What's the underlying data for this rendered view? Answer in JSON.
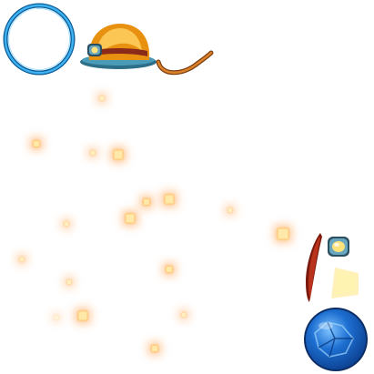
{
  "sheet": {
    "kind": "game sprite sheet (transparent background)",
    "background": "#ffffff"
  },
  "sprites": [
    {
      "id": "ring",
      "icon": "blue-ring-icon",
      "colors": [
        "#1f8fd6",
        "#0a5a99",
        "#ffffff"
      ]
    },
    {
      "id": "helmet",
      "icon": "miner-helmet-icon",
      "colors": [
        "#f2a31a",
        "#ffd060",
        "#2d6e88",
        "#8a2a1a"
      ]
    },
    {
      "id": "strap",
      "icon": "helmet-strap-icon",
      "colors": [
        "#c8741c",
        "#7a3a0e"
      ]
    },
    {
      "id": "lamp",
      "icon": "helmet-lamp-icon",
      "colors": [
        "#6aa7bf",
        "#ffe27a",
        "#2a4f60"
      ]
    },
    {
      "id": "cone",
      "icon": "red-light-cone-icon",
      "colors": [
        "#b8321c",
        "#7a1a0e"
      ]
    },
    {
      "id": "beam",
      "icon": "yellow-beam-icon",
      "colors": [
        "#fff4b0",
        "#ffe680"
      ]
    },
    {
      "id": "orb",
      "icon": "blue-crystal-orb-icon",
      "colors": [
        "#1d6fd1",
        "#0b3f8f",
        "#7fc3ff"
      ]
    }
  ],
  "particles": {
    "icon": "ember-spark-icon",
    "color_core": "#ffe9a8",
    "color_glow": "#ff9a3c",
    "count": 20
  }
}
